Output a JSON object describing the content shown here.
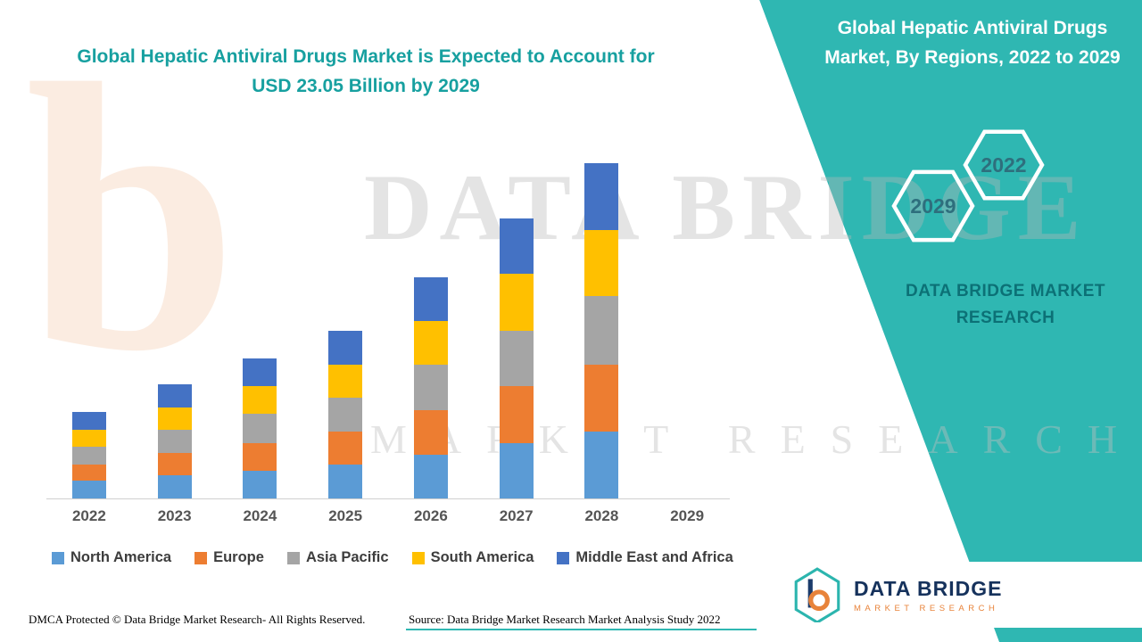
{
  "left": {
    "title": "Global Hepatic Antiviral Drugs Market is Expected to Account for USD 23.05 Billion by 2029"
  },
  "right_panel": {
    "title": "Global Hepatic Antiviral Drugs Market, By Regions, 2022 to 2029",
    "hex_back": "2029",
    "hex_front": "2022",
    "brand_text": "DATA BRIDGE MARKET RESEARCH"
  },
  "logo": {
    "name": "DATA BRIDGE",
    "sub": "MARKET RESEARCH"
  },
  "footer": {
    "dmca": "DMCA Protected © Data Bridge Market Research- All Rights Reserved.",
    "source": "Source: Data Bridge Market Research Market Analysis Study 2022"
  },
  "watermark": {
    "logo_letter": "b",
    "line1": "DATA BRIDGE",
    "line2": "MARKET RESEARCH"
  },
  "chart_data": {
    "type": "bar",
    "stacked": true,
    "title": "Global Hepatic Antiviral Drugs Market is Expected to Account for USD 23.05 Billion by 2029",
    "xlabel": "",
    "ylabel": "",
    "units": "USD Billion (estimated from bar heights; y-axis unlabeled)",
    "ylim": [
      0,
      22
    ],
    "grid": false,
    "legend_position": "bottom",
    "categories": [
      "2022",
      "2023",
      "2024",
      "2025",
      "2026",
      "2027",
      "2028",
      "2029"
    ],
    "series": [
      {
        "name": "North America",
        "color": "#5B9BD5",
        "values": [
          1.1,
          1.4,
          1.7,
          2.1,
          2.7,
          3.4,
          4.1,
          null
        ]
      },
      {
        "name": "Europe",
        "color": "#ED7D31",
        "values": [
          1.0,
          1.4,
          1.7,
          2.0,
          2.7,
          3.5,
          4.1,
          null
        ]
      },
      {
        "name": "Asia Pacific",
        "color": "#A5A5A5",
        "values": [
          1.1,
          1.4,
          1.8,
          2.1,
          2.8,
          3.4,
          4.2,
          null
        ]
      },
      {
        "name": "South America",
        "color": "#FFC000",
        "values": [
          1.0,
          1.4,
          1.7,
          2.0,
          2.7,
          3.5,
          4.1,
          null
        ]
      },
      {
        "name": "Middle East and Africa",
        "color": "#4472C4",
        "values": [
          1.1,
          1.4,
          1.7,
          2.1,
          2.7,
          3.4,
          4.1,
          null
        ]
      }
    ]
  }
}
